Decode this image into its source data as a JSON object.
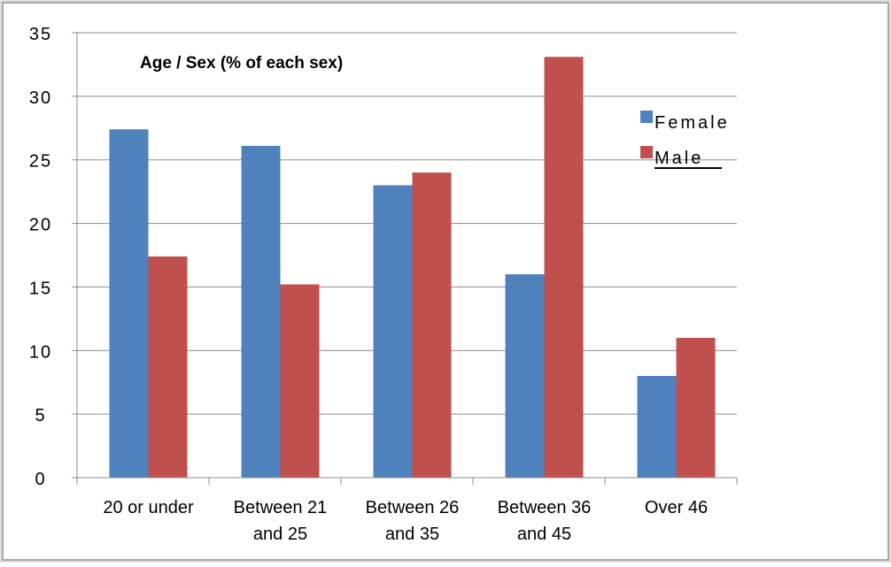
{
  "chart_data": {
    "type": "bar",
    "title": "Age / Sex (% of each sex)",
    "xlabel": "",
    "ylabel": "",
    "categories": [
      [
        "20 or under"
      ],
      [
        "Between 21",
        "and 25"
      ],
      [
        "Between 26",
        "and 35"
      ],
      [
        "Between 36",
        "and 45"
      ],
      [
        "Over 46"
      ]
    ],
    "series": [
      {
        "name": "Female",
        "color": "#4F81BD",
        "values": [
          27.4,
          26.1,
          23.0,
          16.0,
          8.0
        ]
      },
      {
        "name": "Male",
        "color": "#C0504D",
        "values": [
          17.4,
          15.2,
          24.0,
          33.1,
          11.0
        ]
      }
    ],
    "ylim": [
      0,
      35
    ],
    "yticks": [
      0,
      5,
      10,
      15,
      20,
      25,
      30,
      35
    ],
    "ytick_labels": [
      "0",
      "5",
      "10",
      "15",
      "20",
      "25",
      "30",
      "35"
    ],
    "grid": true,
    "legend_position": "top-right"
  }
}
